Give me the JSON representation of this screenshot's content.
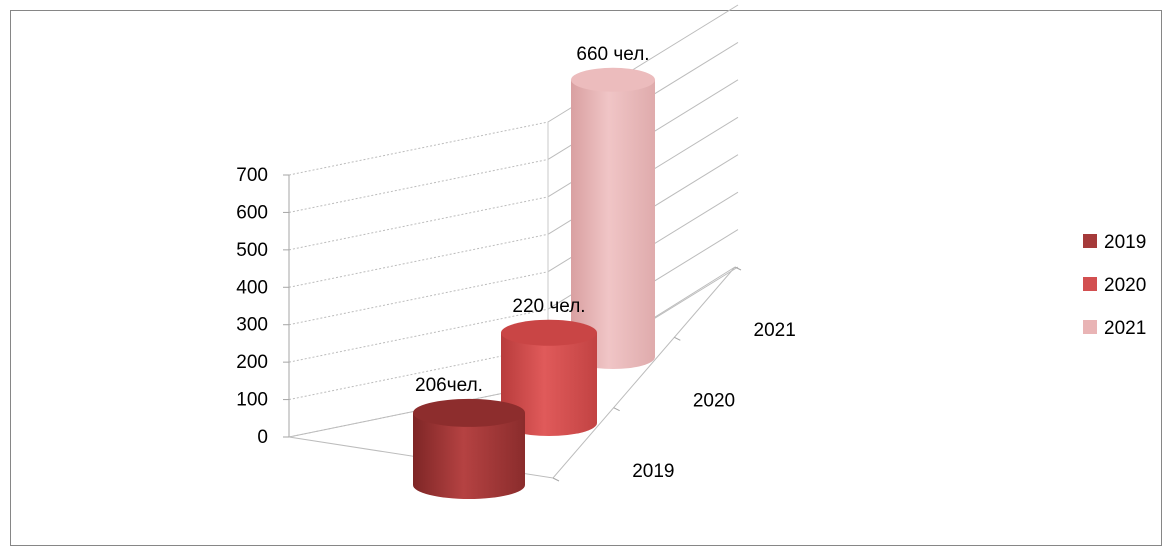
{
  "chart_data": {
    "type": "bar",
    "style": "3d-cylinder",
    "categories": [
      "2019",
      "2020",
      "2021"
    ],
    "values": [
      206,
      220,
      660
    ],
    "data_labels": [
      "206чел.",
      "220 чел.",
      "660 чел."
    ],
    "ylim": [
      0,
      700
    ],
    "yticks": [
      "0",
      "100",
      "200",
      "300",
      "400",
      "500",
      "600",
      "700"
    ],
    "grid": true,
    "legend_position": "right",
    "legend": [
      "2019",
      "2020",
      "2021"
    ],
    "colors": {
      "2019": "#a53a3a",
      "2020": "#d24f50",
      "2021": "#e9b4b5"
    }
  }
}
